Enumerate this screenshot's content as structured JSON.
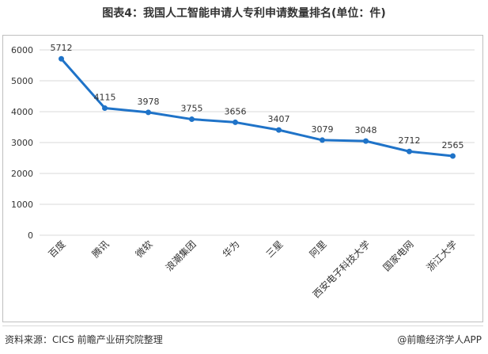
{
  "title": "图表4：我国人工智能申请人专利申请数量排名(单位：件)",
  "footer": {
    "source": "资料来源：CICS 前瞻产业研究院整理",
    "credit": "@前瞻经济学人APP"
  },
  "colors": {
    "line": "#1f73c8",
    "text": "#333333",
    "grid": "#d9d9d9"
  },
  "chart_data": {
    "type": "line",
    "categories": [
      "百度",
      "腾讯",
      "微软",
      "浪潮集团",
      "华为",
      "三星",
      "阿里",
      "西安电子科技大学",
      "国家电网",
      "浙江大学"
    ],
    "values": [
      5712,
      4115,
      3978,
      3755,
      3656,
      3407,
      3079,
      3048,
      2712,
      2565
    ],
    "data_labels": [
      "5712",
      "4115",
      "3978",
      "3755",
      "3656",
      "3407",
      "3079",
      "3048",
      "2712",
      "2565"
    ],
    "ylim": [
      0,
      6000
    ],
    "yticks": [
      "0",
      "1000",
      "2000",
      "3000",
      "4000",
      "5000",
      "6000"
    ],
    "grid": true,
    "markers": true
  }
}
